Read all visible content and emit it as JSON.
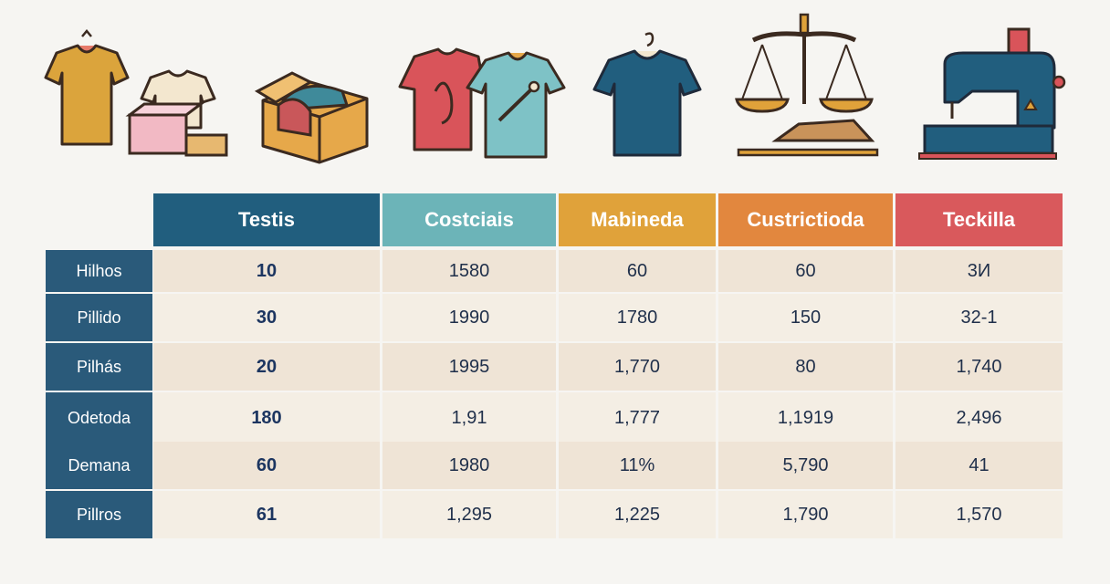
{
  "icons": [
    {
      "name": "shirts-icon"
    },
    {
      "name": "shirt-box-icon"
    },
    {
      "name": "open-box-icon"
    },
    {
      "name": "tshirts-pair-icon"
    },
    {
      "name": "tshirt-hanger-icon"
    },
    {
      "name": "scales-icon"
    },
    {
      "name": "sewing-machine-icon"
    }
  ],
  "table": {
    "columns": [
      {
        "label": "Testis",
        "color": "#215e7e"
      },
      {
        "label": "Costciais",
        "color": "#6cb4b8"
      },
      {
        "label": "Mabineda",
        "color": "#e0a23a"
      },
      {
        "label": "Custrictioda",
        "color": "#e2873e"
      },
      {
        "label": "Teckilla",
        "color": "#d9595c"
      }
    ],
    "rows": [
      {
        "label": "Hilhos",
        "cells": [
          "10",
          "1580",
          "60",
          "60",
          "3И"
        ]
      },
      {
        "label": "Pillido",
        "cells": [
          "30",
          "1990",
          "1780",
          "150",
          "32-1"
        ]
      },
      {
        "label": "Pilhás",
        "cells": [
          "20",
          "1995",
          "1,770",
          "80",
          "1,740"
        ]
      },
      {
        "label": "Odetoda",
        "cells": [
          "180",
          "1,91",
          "1,777",
          "1,1919",
          "2,496"
        ]
      },
      {
        "label": "Demana",
        "cells": [
          "60",
          "1980",
          "11%",
          "5,790",
          "41"
        ]
      },
      {
        "label": "Pillros",
        "cells": [
          "61",
          "1,295",
          "1,225",
          "1,790",
          "1,570"
        ]
      }
    ],
    "row_colors": [
      "#efe4d6",
      "#f4eee4"
    ]
  }
}
